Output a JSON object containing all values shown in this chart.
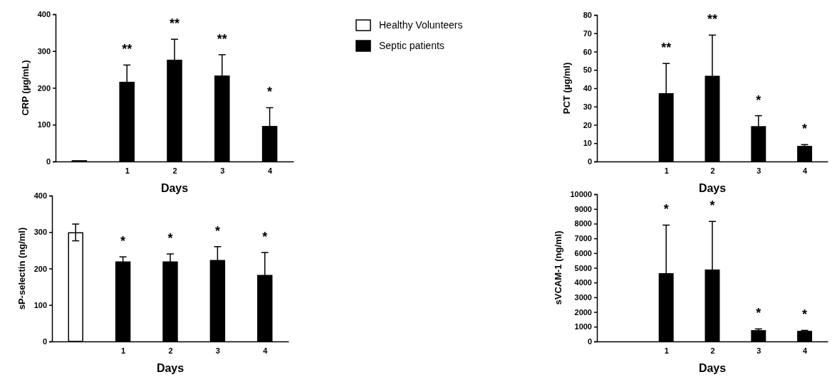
{
  "chart_data": [
    {
      "type": "bar",
      "xlabel": "Days",
      "ylabel": "CRP (µg/mL)",
      "categories": [
        null,
        "1",
        "2",
        "3",
        "4"
      ],
      "ylim": [
        0,
        400
      ],
      "yticks": [
        0,
        100,
        200,
        300,
        400
      ],
      "legend": "right",
      "series": [
        {
          "name": "Healthy Volunteers",
          "color": "#ffffff",
          "values": [
            2,
            null,
            null,
            null,
            null
          ]
        },
        {
          "name": "Septic patients",
          "color": "#000000",
          "values": [
            null,
            215,
            275,
            232,
            95
          ],
          "errors": [
            null,
            [
              215,
              262
            ],
            [
              275,
              332
            ],
            [
              232,
              290
            ],
            [
              95,
              146
            ]
          ]
        }
      ],
      "annotations": [
        "**",
        "**",
        "**",
        "*"
      ]
    },
    {
      "type": "bar",
      "xlabel": "Days",
      "ylabel": "PCT (µg/ml)",
      "categories": [
        null,
        "1",
        "2",
        "3",
        "4"
      ],
      "ylim": [
        0,
        80
      ],
      "yticks": [
        0,
        10,
        20,
        30,
        40,
        50,
        60,
        70,
        80
      ],
      "series": [
        {
          "color": "#000000",
          "values": [
            null,
            37,
            46.5,
            19,
            8.2
          ],
          "errors": [
            null,
            [
              37,
              53.5
            ],
            [
              46.5,
              69
            ],
            [
              19,
              25
            ],
            [
              8.2,
              9.2
            ]
          ]
        }
      ],
      "annotations": [
        "**",
        "**",
        "*",
        "*"
      ]
    },
    {
      "type": "bar",
      "xlabel": "Days",
      "ylabel": "sP-selectin (ng/ml)",
      "categories": [
        null,
        "1",
        "2",
        "3",
        "4"
      ],
      "ylim": [
        0,
        400
      ],
      "yticks": [
        0,
        100,
        200,
        300,
        400
      ],
      "series": [
        {
          "color": "#ffffff",
          "values": [
            298,
            null,
            null,
            null,
            null
          ],
          "errors": [
            [
              276,
              322
            ],
            null,
            null,
            null,
            null
          ]
        },
        {
          "color": "#000000",
          "values": [
            null,
            218,
            218,
            222,
            181
          ],
          "errors": [
            null,
            [
              218,
              232
            ],
            [
              218,
              240
            ],
            [
              222,
              260
            ],
            [
              181,
              244
            ]
          ]
        }
      ],
      "annotations": [
        "*",
        "*",
        "*",
        "*"
      ]
    },
    {
      "type": "bar",
      "xlabel": "Days",
      "ylabel": "sVCAM-1 (ng/ml)",
      "categories": [
        null,
        "1",
        "2",
        "3",
        "4"
      ],
      "ylim": [
        0,
        10000
      ],
      "yticks": [
        0,
        1000,
        2000,
        3000,
        4000,
        5000,
        6000,
        7000,
        8000,
        9000,
        10000
      ],
      "series": [
        {
          "color": "#000000",
          "values": [
            null,
            4600,
            4850,
            730,
            680
          ],
          "errors": [
            null,
            [
              4600,
              7900
            ],
            [
              4850,
              8150
            ],
            [
              730,
              850
            ],
            [
              680,
              750
            ]
          ]
        }
      ],
      "annotations": [
        "*",
        "*",
        "*",
        "*"
      ]
    }
  ]
}
